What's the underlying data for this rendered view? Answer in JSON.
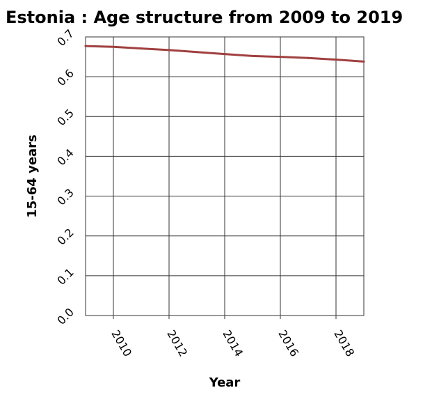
{
  "chart_data": {
    "type": "line",
    "title": "Estonia : Age structure from 2009 to 2019",
    "xlabel": "Year",
    "ylabel": "15-64 years",
    "x": [
      2009,
      2010,
      2011,
      2012,
      2013,
      2014,
      2015,
      2016,
      2017,
      2018,
      2019
    ],
    "series": [
      {
        "values": [
          0.677,
          0.675,
          0.671,
          0.667,
          0.662,
          0.657,
          0.652,
          0.65,
          0.647,
          0.643,
          0.638
        ]
      }
    ],
    "xlim": [
      2009,
      2019
    ],
    "ylim": [
      0,
      0.7
    ],
    "xticks": [
      "2010",
      "2012",
      "2014",
      "2016",
      "2018"
    ],
    "yticks": [
      "0.0",
      "0.1",
      "0.2",
      "0.3",
      "0.4",
      "0.5",
      "0.6",
      "0.7"
    ],
    "grid": true,
    "legend": false,
    "colors": {
      "line": "#a0403f",
      "grid": "#333333",
      "background": "#ffffff"
    }
  }
}
